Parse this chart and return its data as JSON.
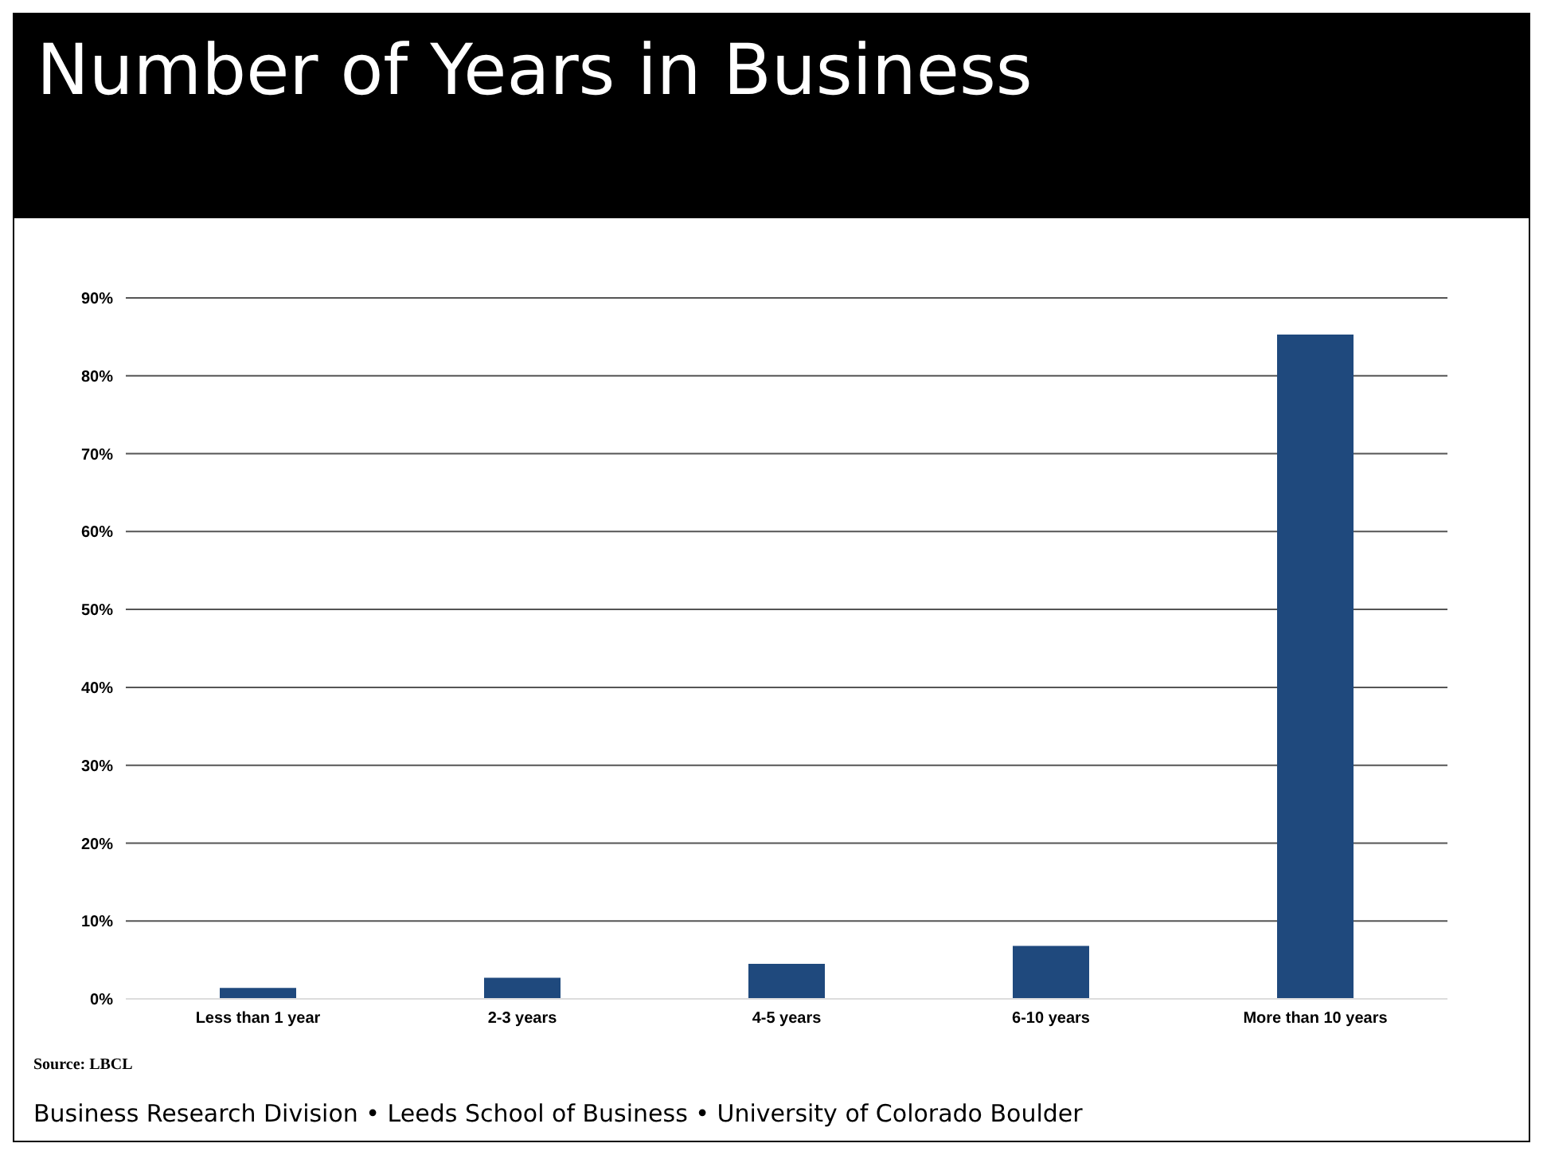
{
  "chart_data": {
    "type": "bar",
    "title": "Number of Years in Business",
    "categories": [
      "Less than 1 year",
      "2-3 years",
      "4-5 years",
      "6-10 years",
      "More than 10 years"
    ],
    "values": [
      1.4,
      2.7,
      4.5,
      6.8,
      85.3
    ],
    "color": "#1f497d",
    "ylim": [
      0,
      90
    ],
    "yticks": [
      {
        "value": 0,
        "label": "0%"
      },
      {
        "value": 10,
        "label": "10%"
      },
      {
        "value": 20,
        "label": "20%"
      },
      {
        "value": 30,
        "label": "30%"
      },
      {
        "value": 40,
        "label": "40%"
      },
      {
        "value": 50,
        "label": "50%"
      },
      {
        "value": 60,
        "label": "60%"
      },
      {
        "value": 70,
        "label": "70%"
      },
      {
        "value": 80,
        "label": "80%"
      },
      {
        "value": 90,
        "label": "90%"
      }
    ],
    "grid": "y",
    "annotations": [
      "Source: LBCL",
      "Business Research Division • Leeds School of Business • University of Colorado Boulder"
    ]
  }
}
